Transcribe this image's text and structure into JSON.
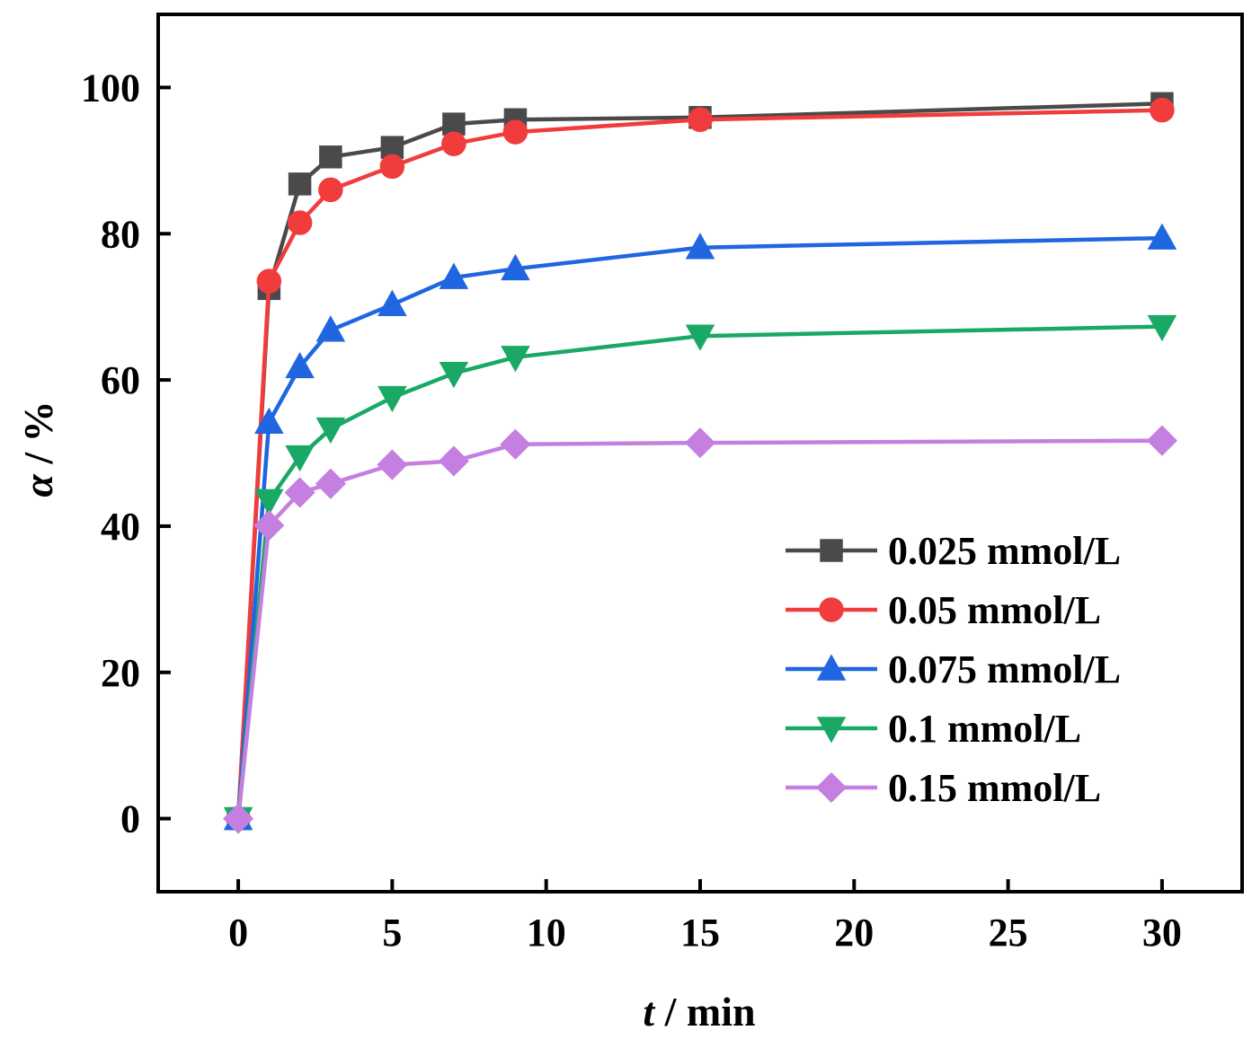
{
  "chart_data": {
    "type": "line",
    "title": "",
    "xlabel": {
      "symbol": "t",
      "rest": " / min"
    },
    "ylabel": {
      "symbol": "α",
      "rest": " / %"
    },
    "xlim": [
      -2.6,
      32.6
    ],
    "ylim": [
      -10,
      110
    ],
    "xticks": [
      0,
      5,
      10,
      15,
      20,
      25,
      30
    ],
    "yticks": [
      0,
      20,
      40,
      60,
      80,
      100
    ],
    "xtick_labels": [
      "0",
      "5",
      "10",
      "15",
      "20",
      "25",
      "30"
    ],
    "ytick_labels": [
      "0",
      "20",
      "40",
      "60",
      "80",
      "100"
    ],
    "legend_position": "lower-right",
    "x": [
      0,
      1,
      2,
      3,
      5,
      7,
      9,
      15,
      30
    ],
    "series": [
      {
        "name": "0.025 mmol/L",
        "color": "#4a4a4a",
        "marker": "square",
        "values": [
          0,
          72.5,
          86.8,
          90.5,
          91.8,
          95.0,
          95.6,
          95.9,
          97.8
        ]
      },
      {
        "name": "0.05 mmol/L",
        "color": "#f03c3c",
        "marker": "circle",
        "values": [
          0,
          73.5,
          81.5,
          86.0,
          89.2,
          92.3,
          93.9,
          95.6,
          96.9
        ]
      },
      {
        "name": "0.075 mmol/L",
        "color": "#1f66e0",
        "marker": "triangle-up",
        "values": [
          0,
          54.2,
          61.8,
          66.8,
          70.3,
          74.0,
          75.2,
          78.1,
          79.4
        ]
      },
      {
        "name": "0.1 mmol/L",
        "color": "#1aa866",
        "marker": "triangle-down",
        "values": [
          0,
          43.5,
          49.5,
          53.3,
          57.6,
          60.9,
          63.1,
          66.0,
          67.3
        ]
      },
      {
        "name": "0.15 mmol/L",
        "color": "#c47fe0",
        "marker": "diamond",
        "values": [
          0,
          40.1,
          44.6,
          45.8,
          48.4,
          48.9,
          51.2,
          51.4,
          51.7
        ]
      }
    ]
  }
}
